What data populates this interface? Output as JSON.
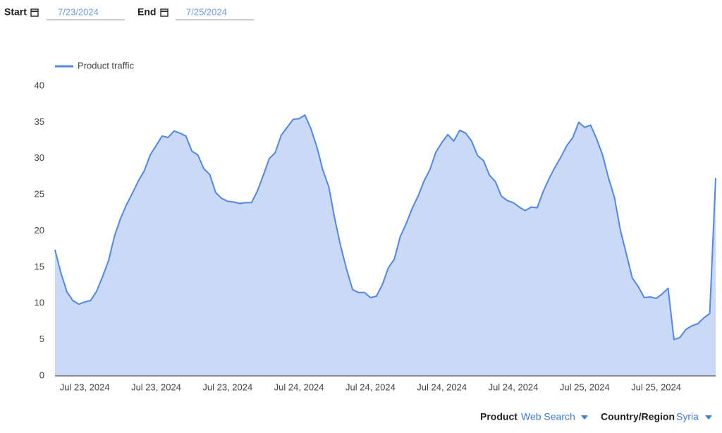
{
  "filters": {
    "start_label": "Start",
    "start_date": "7/23/2024",
    "end_label": "End",
    "end_date": "7/25/2024"
  },
  "chart_data": {
    "type": "area",
    "categories": [
      null,
      null,
      null,
      null,
      null,
      "Jul 23, 2024",
      null,
      null,
      null,
      null,
      null,
      null,
      null,
      null,
      null,
      null,
      null,
      "Jul 23, 2024",
      null,
      null,
      null,
      null,
      null,
      null,
      null,
      null,
      null,
      null,
      null,
      "Jul 23, 2024",
      null,
      null,
      null,
      null,
      null,
      null,
      null,
      null,
      null,
      null,
      null,
      "Jul 24, 2024",
      null,
      null,
      null,
      null,
      null,
      null,
      null,
      null,
      null,
      null,
      null,
      "Jul 24, 2024",
      null,
      null,
      null,
      null,
      null,
      null,
      null,
      null,
      null,
      null,
      null,
      "Jul 24, 2024",
      null,
      null,
      null,
      null,
      null,
      null,
      null,
      null,
      null,
      null,
      null,
      "Jul 24, 2024",
      null,
      null,
      null,
      null,
      null,
      null,
      null,
      null,
      null,
      null,
      null,
      "Jul 25, 2024",
      null,
      null,
      null,
      null,
      null,
      null,
      null,
      null,
      null,
      null,
      null,
      "Jul 25, 2024",
      null,
      null,
      null,
      null,
      null,
      null,
      null,
      null,
      null,
      null
    ],
    "series": [
      {
        "name": "Product traffic",
        "color": "#5087e8",
        "fill": "#c9d9f6",
        "values": [
          17.4,
          14.2,
          11.6,
          10.4,
          9.9,
          10.2,
          10.4,
          11.7,
          13.7,
          15.9,
          19.3,
          21.7,
          23.6,
          25.2,
          26.9,
          28.3,
          30.5,
          31.8,
          33.1,
          32.9,
          33.8,
          33.5,
          33.1,
          31.0,
          30.5,
          28.6,
          27.8,
          25.3,
          24.5,
          24.1,
          24.0,
          23.8,
          23.9,
          23.9,
          25.5,
          27.7,
          30.0,
          30.8,
          33.2,
          34.3,
          35.4,
          35.5,
          36.0,
          34.1,
          31.6,
          28.4,
          26.1,
          21.7,
          17.9,
          14.7,
          11.9,
          11.5,
          11.5,
          10.8,
          11.0,
          12.6,
          14.9,
          16.1,
          19.2,
          21.0,
          23.1,
          24.8,
          26.9,
          28.5,
          30.9,
          32.2,
          33.3,
          32.4,
          33.9,
          33.5,
          32.4,
          30.4,
          29.7,
          27.7,
          26.8,
          24.8,
          24.2,
          23.9,
          23.3,
          22.8,
          23.3,
          23.2,
          25.4,
          27.2,
          28.8,
          30.2,
          31.8,
          32.9,
          35.0,
          34.3,
          34.6,
          32.7,
          30.5,
          27.3,
          24.6,
          20.1,
          16.8,
          13.5,
          12.3,
          10.8,
          10.9,
          10.7,
          11.3,
          12.1,
          5.0,
          5.3,
          6.4,
          6.9,
          7.2,
          8.0,
          8.6,
          27.3
        ]
      }
    ],
    "ylim": [
      0,
      40
    ],
    "yticks": [
      0,
      5,
      10,
      15,
      20,
      25,
      30,
      35,
      40
    ],
    "grid": false,
    "legend": "top-left"
  },
  "selectors": {
    "product_label": "Product",
    "product_value": "Web Search",
    "region_label": "Country/Region",
    "region_value": "Syria"
  }
}
